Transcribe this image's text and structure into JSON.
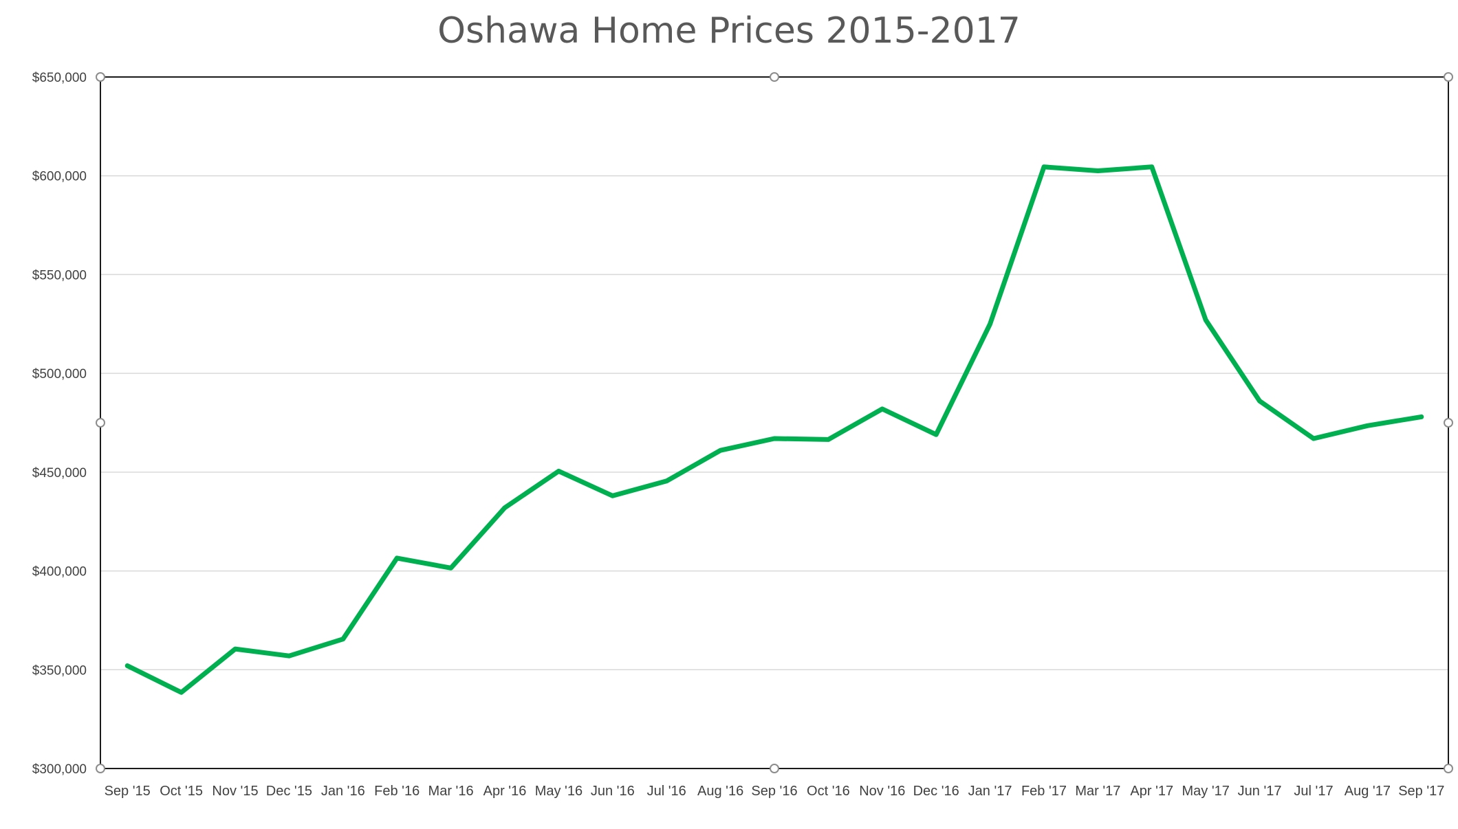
{
  "chart_data": {
    "type": "line",
    "title": "Oshawa Home Prices 2015-2017",
    "xlabel": "",
    "ylabel": "",
    "categories": [
      "Sep '15",
      "Oct '15",
      "Nov '15",
      "Dec '15",
      "Jan '16",
      "Feb '16",
      "Mar '16",
      "Apr '16",
      "May '16",
      "Jun '16",
      "Jul '16",
      "Aug '16",
      "Sep '16",
      "Oct '16",
      "Nov '16",
      "Dec '16",
      "Jan '17",
      "Feb '17",
      "Mar '17",
      "Apr '17",
      "May '17",
      "Jun '17",
      "Jul '17",
      "Aug '17",
      "Sep '17"
    ],
    "series": [
      {
        "color": "#00b050",
        "values": [
          352000,
          338500,
          360500,
          357000,
          365500,
          406500,
          401500,
          432000,
          450500,
          438000,
          445500,
          461000,
          467000,
          466500,
          482000,
          469000,
          525000,
          604500,
          602500,
          604500,
          527000,
          486000,
          467000,
          473500,
          478000
        ]
      }
    ],
    "ylim": [
      300000,
      650000
    ],
    "yticks": [
      300000,
      350000,
      400000,
      450000,
      500000,
      550000,
      600000,
      650000
    ],
    "ytick_labels": [
      "$300,000",
      "$350,000",
      "$400,000",
      "$450,000",
      "$500,000",
      "$550,000",
      "$600,000",
      "$650,000"
    ],
    "grid": true,
    "legend": "none"
  }
}
